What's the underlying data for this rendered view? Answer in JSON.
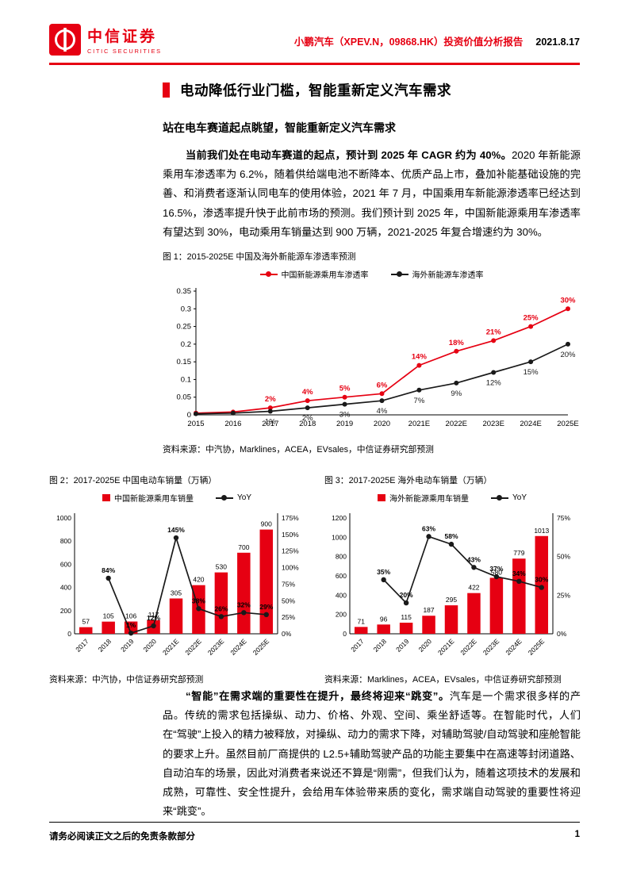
{
  "colors": {
    "accent_red": "#e60012",
    "line_black": "#1a1a1a"
  },
  "header": {
    "brand_cn": "中信证券",
    "brand_en": "CITIC SECURITIES",
    "report_title": "小鹏汽车（XPEV.N，09868.HK）投资价值分析报告",
    "date": "2021.8.17"
  },
  "section": {
    "title": "电动降低行业门槛，智能重新定义汽车需求",
    "subtitle": "站在电车赛道起点眺望，智能重新定义汽车需求"
  },
  "paragraphs": [
    {
      "lead": "当前我们处在电动车赛道的起点，预计到 2025 年 CAGR 约为 40%。",
      "body": "2020 年新能源乘用车渗透率为 6.2%，随着供给端电池不断降本、优质产品上市，叠加补能基础设施的完善、和消费者逐渐认同电车的使用体验，2021 年 7 月，中国乘用车新能源渗透率已经达到 16.5%，渗透率提升快于此前市场的预测。我们预计到 2025 年，中国新能源乘用车渗透率有望达到 30%，电动乘用车销量达到 900 万辆，2021-2025 年复合增速约为 30%。"
    },
    {
      "lead": "“智能”在需求端的重要性在提升，最终将迎来“跳变”。",
      "body": "汽车是一个需求很多样的产品。传统的需求包括操纵、动力、价格、外观、空间、乘坐舒适等。在智能时代，人们在“驾驶”上投入的精力被释放，对操纵、动力的需求下降，对辅助驾驶/自动驾驶和座舱智能的要求上升。虽然目前厂商提供的 L2.5+辅助驾驶产品的功能主要集中在高速等封闭道路、自动泊车的场景，因此对消费者来说还不算是“刚需”，但我们认为，随着这项技术的发展和成熟，可靠性、安全性提升，会给用车体验带来质的变化，需求端自动驾驶的重要性将迎来“跳变”。"
    }
  ],
  "chart_data": [
    {
      "id": "fig1",
      "type": "line",
      "title": "图 1：2015-2025E 中国及海外新能源车渗透率预测",
      "categories": [
        "2015",
        "2016",
        "2017",
        "2018",
        "2019",
        "2020",
        "2021E",
        "2022E",
        "2023E",
        "2024E",
        "2025E"
      ],
      "series": [
        {
          "name": "中国新能源乘用车渗透率",
          "color": "#e60012",
          "label_pos": "above",
          "values": [
            0.005,
            0.008,
            0.02,
            0.04,
            0.05,
            0.06,
            0.14,
            0.18,
            0.21,
            0.25,
            0.3
          ],
          "labels": [
            "",
            "",
            "2%",
            "4%",
            "5%",
            "6%",
            "14%",
            "18%",
            "21%",
            "25%",
            "30%"
          ]
        },
        {
          "name": "海外新能源车渗透率",
          "color": "#1a1a1a",
          "label_pos": "below",
          "values": [
            0.003,
            0.005,
            0.01,
            0.02,
            0.03,
            0.04,
            0.07,
            0.09,
            0.12,
            0.15,
            0.2
          ],
          "labels": [
            "",
            "",
            "1%",
            "2%",
            "3%",
            "4%",
            "7%",
            "9%",
            "12%",
            "15%",
            "20%"
          ]
        }
      ],
      "ylim": [
        0,
        0.35
      ],
      "yticks": [
        {
          "v": 0,
          "t": "0"
        },
        {
          "v": 0.05,
          "t": "0.05"
        },
        {
          "v": 0.1,
          "t": "0.1"
        },
        {
          "v": 0.15,
          "t": "0.15"
        },
        {
          "v": 0.2,
          "t": "0.2"
        },
        {
          "v": 0.25,
          "t": "0.25"
        },
        {
          "v": 0.3,
          "t": "0.3"
        },
        {
          "v": 0.35,
          "t": "0.35"
        }
      ],
      "grid": false,
      "legend_position": "top",
      "source": "资料来源：中汽协，Marklines，ACEA，EVsales，中信证券研究部预测"
    },
    {
      "id": "fig2",
      "type": "bar-line",
      "title": "图 2：2017-2025E 中国电动车销量（万辆）",
      "categories": [
        "2017",
        "2018",
        "2019",
        "2020",
        "2021E",
        "2022E",
        "2023E",
        "2024E",
        "2025E"
      ],
      "bar": {
        "name": "中国新能源乘用车销量",
        "color": "#e60012",
        "values": [
          57,
          105,
          106,
          117,
          305,
          420,
          530,
          700,
          900
        ]
      },
      "line": {
        "name": "YoY",
        "color": "#1a1a1a",
        "values": [
          null,
          84,
          1,
          12,
          145,
          38,
          26,
          32,
          29
        ],
        "labels": [
          "",
          "84%",
          "1%",
          "12%",
          "145%",
          "38%",
          "26%",
          "32%",
          "29%"
        ]
      },
      "ylim_left": [
        0,
        1000
      ],
      "yticks_left": [
        {
          "v": 0,
          "t": "0"
        },
        {
          "v": 200,
          "t": "200"
        },
        {
          "v": 400,
          "t": "400"
        },
        {
          "v": 600,
          "t": "600"
        },
        {
          "v": 800,
          "t": "800"
        },
        {
          "v": 1000,
          "t": "1000"
        }
      ],
      "ylim_right": [
        0,
        175
      ],
      "yticks_right": [
        {
          "v": 0,
          "t": "0%"
        },
        {
          "v": 25,
          "t": "25%"
        },
        {
          "v": 50,
          "t": "50%"
        },
        {
          "v": 75,
          "t": "75%"
        },
        {
          "v": 100,
          "t": "100%"
        },
        {
          "v": 125,
          "t": "125%"
        },
        {
          "v": 150,
          "t": "150%"
        },
        {
          "v": 175,
          "t": "175%"
        }
      ],
      "grid": false,
      "legend_position": "top",
      "source": "资料来源：中汽协，中信证券研究部预测"
    },
    {
      "id": "fig3",
      "type": "bar-line",
      "title": "图 3：2017-2025E 海外电动车销量（万辆）",
      "categories": [
        "2017",
        "2018",
        "2019",
        "2020",
        "2021E",
        "2022E",
        "2023E",
        "2024E",
        "2025E"
      ],
      "bar": {
        "name": "海外新能源乘用车销量",
        "color": "#e60012",
        "values": [
          71,
          96,
          115,
          187,
          295,
          422,
          580,
          779,
          1013
        ]
      },
      "line": {
        "name": "YoY",
        "color": "#1a1a1a",
        "values": [
          null,
          35,
          20,
          63,
          58,
          43,
          37,
          34,
          30
        ],
        "labels": [
          "",
          "35%",
          "20%",
          "63%",
          "58%",
          "43%",
          "37%",
          "34%",
          "30%"
        ]
      },
      "ylim_left": [
        0,
        1200
      ],
      "yticks_left": [
        {
          "v": 0,
          "t": "0"
        },
        {
          "v": 200,
          "t": "200"
        },
        {
          "v": 400,
          "t": "400"
        },
        {
          "v": 600,
          "t": "600"
        },
        {
          "v": 800,
          "t": "800"
        },
        {
          "v": 1000,
          "t": "1000"
        },
        {
          "v": 1200,
          "t": "1200"
        }
      ],
      "ylim_right": [
        0,
        75
      ],
      "yticks_right": [
        {
          "v": 0,
          "t": "0%"
        },
        {
          "v": 25,
          "t": "25%"
        },
        {
          "v": 50,
          "t": "50%"
        },
        {
          "v": 75,
          "t": "75%"
        }
      ],
      "grid": false,
      "legend_position": "top",
      "source": "资料来源：Marklines，ACEA，EVsales，中信证券研究部预测"
    }
  ],
  "footer": {
    "disclaimer": "请务必阅读正文之后的免责条款部分",
    "page_number": "1"
  }
}
